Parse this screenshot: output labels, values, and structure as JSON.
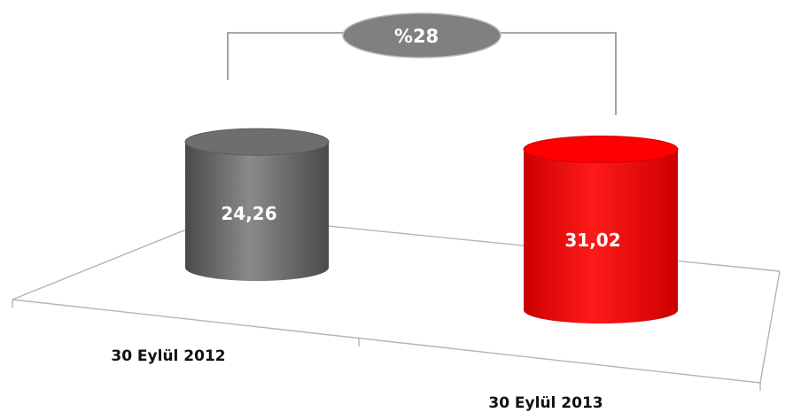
{
  "chart_data": {
    "type": "bar",
    "style": "3d-cylinder",
    "categories": [
      "30 Eylül 2012",
      "30 Eylül 2013"
    ],
    "values": [
      24.26,
      31.02
    ],
    "value_labels": [
      "24,26",
      "31,02"
    ],
    "colors": [
      "#6e6e6e",
      "#ff0000"
    ],
    "growth_label": "%28",
    "growth_color": "#808080",
    "title": "",
    "xlabel": "",
    "ylabel": "",
    "grid": false,
    "legend": "none"
  }
}
